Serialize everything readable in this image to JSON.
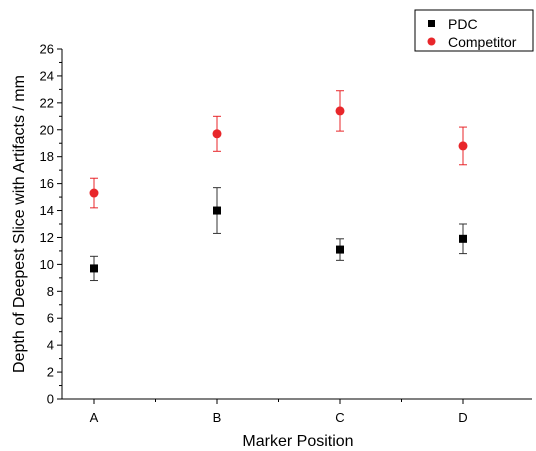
{
  "chart_data": {
    "type": "scatter",
    "title": "",
    "xlabel": "Marker Position",
    "ylabel": "Depth of Deepest Slice with Artifacts / mm",
    "categories": [
      "A",
      "B",
      "C",
      "D"
    ],
    "ylim": [
      0,
      26
    ],
    "yticks": [
      0,
      2,
      4,
      6,
      8,
      10,
      12,
      14,
      16,
      18,
      20,
      22,
      24,
      26
    ],
    "grid": false,
    "legend_position": "top-right",
    "series": [
      {
        "name": "PDC",
        "marker": "square",
        "color": "#000000",
        "values": [
          9.7,
          14.0,
          11.1,
          11.9
        ],
        "errors": [
          0.9,
          1.7,
          0.8,
          1.1
        ]
      },
      {
        "name": "Competitor",
        "marker": "circle",
        "color": "#e8262a",
        "values": [
          15.3,
          19.7,
          21.4,
          18.8
        ],
        "errors": [
          1.1,
          1.3,
          1.5,
          1.4
        ]
      }
    ]
  }
}
